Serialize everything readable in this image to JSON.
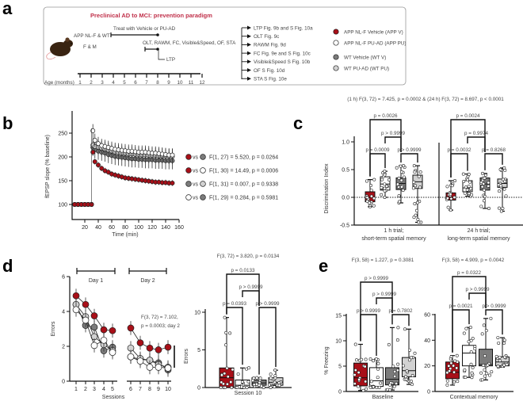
{
  "panel_labels": {
    "a": "a",
    "b": "b",
    "c": "c",
    "d": "d",
    "e": "e"
  },
  "colors": {
    "APP_V": "#a80f18",
    "APP_PU": "#ffffff",
    "WT_V": "#7b7b7b",
    "WT_PU": "#d2d2d2",
    "title": "#c0304a"
  },
  "panel_a": {
    "title": "Preclinical AD to MCI: prevention paradigm",
    "cohort": "APP NL-F & WT",
    "sex": "F & M",
    "treatment": "Treat with Vehicle or PU-AD",
    "tests": "OLT, RAWM, FC, Visible&Speed, OF, STA",
    "ltp": "LTP",
    "age_label": "Age (months)",
    "months": [
      "1",
      "2",
      "3",
      "4",
      "5",
      "6",
      "7",
      "8",
      "9",
      "10",
      "11",
      "12"
    ],
    "outcomes": [
      "LTP Fig. 9b and S Fig. 10a",
      "OLT Fig. 9c",
      "RAWM Fig. 9d",
      "FC Fig. 9e and S Fig. 10c",
      "Visible&Speed S Fig. 10b",
      "OF S Fig. 10d",
      "STA S Fig. 10e"
    ],
    "legend": [
      {
        "label": "APP NL-F Vehicle (APP V)",
        "group": "APP_V"
      },
      {
        "label": "APP NL-F PU-AD (APP PU)",
        "group": "APP_PU"
      },
      {
        "label": "WT Vehicle (WT V)",
        "group": "WT_V"
      },
      {
        "label": "WT PU-AD (WT PU)",
        "group": "WT_PU"
      }
    ]
  },
  "chart_data": [
    {
      "id": "b",
      "type": "scatter",
      "xlabel": "Time (min)",
      "ylabel": "fEPSP slope (% baseline)",
      "xlim": [
        0,
        160
      ],
      "ylim": [
        70,
        280
      ],
      "xticks": [
        20,
        40,
        60,
        80,
        100,
        120,
        140,
        160
      ],
      "yticks": [
        100,
        150,
        200,
        250
      ],
      "x": [
        5,
        10,
        15,
        20,
        25,
        30,
        32,
        35,
        40,
        45,
        50,
        55,
        60,
        65,
        70,
        75,
        80,
        85,
        90,
        95,
        100,
        105,
        110,
        115,
        120,
        125,
        130,
        135,
        140,
        145,
        150
      ],
      "series": [
        {
          "group": "WT_V",
          "values": [
            100,
            100,
            100,
            100,
            100,
            100,
            220,
            215,
            212,
            210,
            208,
            205,
            203,
            201,
            200,
            199,
            198,
            197,
            196,
            196,
            195,
            195,
            194,
            194,
            194,
            193,
            193,
            193,
            192,
            192,
            192
          ],
          "err": 18
        },
        {
          "group": "WT_PU",
          "values": [
            100,
            100,
            100,
            100,
            100,
            100,
            225,
            222,
            220,
            218,
            216,
            214,
            212,
            210,
            209,
            208,
            207,
            206,
            206,
            205,
            205,
            204,
            204,
            203,
            203,
            203,
            202,
            202,
            202,
            201,
            201
          ],
          "err": 16
        },
        {
          "group": "APP_PU",
          "values": [
            100,
            100,
            100,
            100,
            100,
            100,
            255,
            235,
            228,
            224,
            222,
            220,
            218,
            216,
            215,
            214,
            213,
            212,
            212,
            211,
            210,
            210,
            210,
            209,
            208,
            208,
            207,
            206,
            205,
            204,
            204
          ],
          "err": 14
        },
        {
          "group": "APP_V",
          "values": [
            100,
            100,
            100,
            100,
            100,
            100,
            210,
            190,
            183,
            176,
            171,
            168,
            164,
            162,
            160,
            158,
            156,
            155,
            154,
            153,
            152,
            151,
            150,
            149,
            148,
            147,
            147,
            146,
            146,
            145,
            145
          ],
          "err": 6
        }
      ],
      "comparisons": [
        {
          "a": "APP_V",
          "b": "WT_V",
          "vs": "vs",
          "stat": "F(1, 27) = 5.520, p = 0.0264"
        },
        {
          "a": "APP_V",
          "b": "APP_PU",
          "vs": "vs",
          "stat": "F(1, 30) = 14.49, p = 0.0006"
        },
        {
          "a": "WT_V",
          "b": "WT_PU",
          "vs": "vs",
          "stat": "F(1, 31) = 0.007, p = 0.9338"
        },
        {
          "a": "APP_PU",
          "b": "WT_V",
          "vs": "vs",
          "stat": "F(1, 29) = 0.284, p = 0.5981"
        }
      ]
    },
    {
      "id": "c",
      "type": "box",
      "anova": "(1 h) F(3, 72) = 7.425, p = 0.0002 & (24 h) F(3, 72) = 8.697, p < 0.0001",
      "ylabel": "Discrimination Index",
      "ylim": [
        -0.5,
        1.0
      ],
      "yticks": [
        "1.0",
        "0.5",
        "0.0",
        "-0.5"
      ],
      "ytick_values": [
        1.0,
        0.5,
        0.0,
        -0.5
      ],
      "categories": [
        {
          "line1": "1 h trial;",
          "line2": "short-term spatial memory"
        },
        {
          "line1": "24 h trial;",
          "line2": "long-term spatial memory"
        }
      ],
      "boxes": [
        {
          "group": "APP_V",
          "cat": 0,
          "min": -0.17,
          "q1": -0.08,
          "median": 0.0,
          "q3": 0.1,
          "max": 0.32
        },
        {
          "group": "APP_PU",
          "cat": 0,
          "min": 0.0,
          "q1": 0.13,
          "median": 0.24,
          "q3": 0.37,
          "max": 0.47
        },
        {
          "group": "WT_V",
          "cat": 0,
          "min": -0.1,
          "q1": 0.14,
          "median": 0.25,
          "q3": 0.35,
          "max": 0.57
        },
        {
          "group": "WT_PU",
          "cat": 0,
          "min": -0.45,
          "q1": 0.16,
          "median": 0.28,
          "q3": 0.4,
          "max": 0.57
        },
        {
          "group": "APP_V",
          "cat": 1,
          "min": -0.23,
          "q1": -0.05,
          "median": 0.0,
          "q3": 0.08,
          "max": 0.3
        },
        {
          "group": "APP_PU",
          "cat": 1,
          "min": 0.02,
          "q1": 0.1,
          "median": 0.17,
          "q3": 0.3,
          "max": 0.42
        },
        {
          "group": "WT_V",
          "cat": 1,
          "min": -0.2,
          "q1": 0.13,
          "median": 0.24,
          "q3": 0.35,
          "max": 0.43
        },
        {
          "group": "WT_PU",
          "cat": 1,
          "min": -0.25,
          "q1": 0.18,
          "median": 0.25,
          "q3": 0.33,
          "max": 0.53
        }
      ],
      "brackets": [
        {
          "from": 0,
          "to": 1,
          "level": 0,
          "label": "p = 0.0009"
        },
        {
          "from": 2,
          "to": 3,
          "level": 0,
          "label": "p > 0.9999"
        },
        {
          "from": 1,
          "to": 2,
          "level": 1,
          "label": "p > 0.9999"
        },
        {
          "from": 0,
          "to": 2,
          "level": 2,
          "label": "p = 0.0026"
        },
        {
          "from": 4,
          "to": 5,
          "level": 0,
          "label": "p = 0.0032"
        },
        {
          "from": 6,
          "to": 7,
          "level": 0,
          "label": "p = 0.8268"
        },
        {
          "from": 5,
          "to": 6,
          "level": 1,
          "label": "p = 0.9974"
        },
        {
          "from": 4,
          "to": 6,
          "level": 2,
          "label": "p = 0.0024"
        }
      ]
    },
    {
      "id": "d_line",
      "type": "line",
      "xlabel": "Sessions",
      "ylabel": "Errors",
      "ylim": [
        0,
        6
      ],
      "yticks": [
        0,
        2,
        4,
        6
      ],
      "x": [
        "1",
        "2",
        "3",
        "4",
        "5",
        "6",
        "7",
        "8",
        "9",
        "10"
      ],
      "days": [
        {
          "label": "Day 1"
        },
        {
          "label": "Day 2"
        }
      ],
      "stat_line1": "F(3, 72) = 7.102,",
      "stat_line2": "p = 0.0003; day 2",
      "series": [
        {
          "group": "WT_V",
          "values": [
            4.4,
            3.2,
            3.1,
            1.75,
            1.95,
            1.4,
            1.25,
            1.2,
            1.05,
            0.65
          ]
        },
        {
          "group": "WT_PU",
          "values": [
            4.4,
            3.7,
            2.55,
            2.1,
            1.75,
            1.9,
            1.3,
            1.2,
            0.95,
            0.8
          ]
        },
        {
          "group": "APP_PU",
          "values": [
            4.1,
            3.5,
            2.05,
            2.35,
            1.65,
            1.4,
            1.15,
            0.8,
            0.8,
            0.75
          ]
        },
        {
          "group": "APP_V",
          "values": [
            4.9,
            4.4,
            3.75,
            2.95,
            2.9,
            3.05,
            2.2,
            1.9,
            1.8,
            1.95
          ]
        }
      ],
      "error": 0.4
    },
    {
      "id": "d_box",
      "type": "box",
      "anova": "F(3, 72) = 3.820, p = 0.0134",
      "ylabel": "Errors",
      "ylim": [
        0,
        10
      ],
      "yticks": [
        "0",
        "5",
        "10"
      ],
      "ytick_values": [
        0,
        5,
        10
      ],
      "categories": [
        {
          "line1": "Session 10"
        }
      ],
      "boxes": [
        {
          "group": "APP_V",
          "min": 0,
          "q1": 0,
          "median": 1.3,
          "q3": 2.6,
          "max": 9.3
        },
        {
          "group": "APP_PU",
          "min": 0,
          "q1": 0,
          "median": 0.3,
          "q3": 1.0,
          "max": 2.6
        },
        {
          "group": "WT_V",
          "min": 0,
          "q1": 0.3,
          "median": 0.6,
          "q3": 1.0,
          "max": 1.3
        },
        {
          "group": "WT_PU",
          "min": 0,
          "q1": 0.3,
          "median": 0.7,
          "q3": 1.3,
          "max": 2.3
        }
      ],
      "brackets": [
        {
          "from": 0,
          "to": 1,
          "level": 0,
          "label": "p = 0.0393"
        },
        {
          "from": 2,
          "to": 3,
          "level": 0,
          "label": "p > 0.9999"
        },
        {
          "from": 1,
          "to": 2,
          "level": 1,
          "label": "p > 0.9999"
        },
        {
          "from": 0,
          "to": 2,
          "level": 2,
          "label": "p = 0.0133"
        }
      ]
    },
    {
      "id": "e_baseline",
      "type": "box",
      "anova": "F(3, 58) = 1.227, p = 0.3081",
      "ylabel": "% Freezing",
      "ylim": [
        0,
        15
      ],
      "yticks": [
        "0",
        "5",
        "10",
        "15"
      ],
      "ytick_values": [
        0,
        5,
        10,
        15
      ],
      "categories": [
        {
          "line1": "Baseline"
        }
      ],
      "boxes": [
        {
          "group": "APP_V",
          "min": 0.2,
          "q1": 1.1,
          "median": 2.7,
          "q3": 5.6,
          "max": 9.3
        },
        {
          "group": "APP_PU",
          "min": 0.8,
          "q1": 1.0,
          "median": 2.1,
          "q3": 4.7,
          "max": 6.4
        },
        {
          "group": "WT_V",
          "min": 0.3,
          "q1": 1.3,
          "median": 2.4,
          "q3": 4.7,
          "max": 12.6
        },
        {
          "group": "WT_PU",
          "min": 1.4,
          "q1": 2.9,
          "median": 4.1,
          "q3": 6.7,
          "max": 12.3
        }
      ],
      "brackets": [
        {
          "from": 0,
          "to": 1,
          "level": 0,
          "label": "p > 0.9999"
        },
        {
          "from": 2,
          "to": 3,
          "level": 0,
          "label": "p = 0.7802"
        },
        {
          "from": 1,
          "to": 2,
          "level": 1,
          "label": "p > 0.9999"
        },
        {
          "from": 0,
          "to": 2,
          "level": 2,
          "label": "p > 0.9999"
        }
      ]
    },
    {
      "id": "e_context",
      "type": "box",
      "anova": "F(3, 58) = 4.909, p = 0.0042",
      "ylabel": "",
      "ylim": [
        0,
        60
      ],
      "yticks": [
        "0",
        "20",
        "40",
        "60"
      ],
      "ytick_values": [
        0,
        20,
        40,
        60
      ],
      "categories": [
        {
          "line1": "Contextual memory"
        }
      ],
      "boxes": [
        {
          "group": "APP_V",
          "min": 5,
          "q1": 10,
          "median": 15,
          "q3": 23,
          "max": 28
        },
        {
          "group": "APP_PU",
          "min": 11,
          "q1": 20,
          "median": 30,
          "q3": 36,
          "max": 50
        },
        {
          "group": "WT_V",
          "min": 9,
          "q1": 20,
          "median": 21,
          "q3": 33,
          "max": 57
        },
        {
          "group": "WT_PU",
          "min": 19,
          "q1": 20,
          "median": 23,
          "q3": 27,
          "max": 42
        }
      ],
      "brackets": [
        {
          "from": 0,
          "to": 1,
          "level": 0,
          "label": "p = 0.0021"
        },
        {
          "from": 2,
          "to": 3,
          "level": 0,
          "label": "p > 0.9999"
        },
        {
          "from": 1,
          "to": 2,
          "level": 1,
          "label": "p > 0.9999"
        },
        {
          "from": 0,
          "to": 2,
          "level": 2,
          "label": "p = 0.0322"
        }
      ]
    }
  ]
}
